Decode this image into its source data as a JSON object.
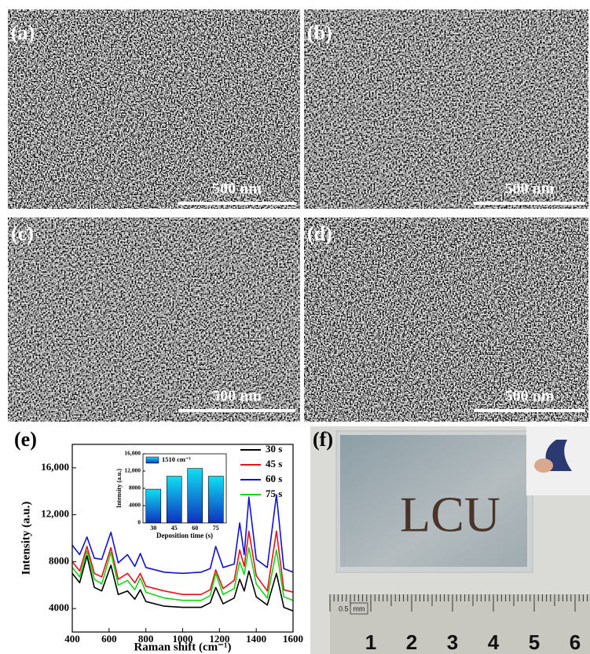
{
  "panels": [
    {
      "label": "(a)",
      "scale_bar": "500 nm"
    },
    {
      "label": "(b)",
      "scale_bar": "500 nm"
    },
    {
      "label": "(c)",
      "scale_bar": "500 nm"
    },
    {
      "label": "(d)",
      "scale_bar": "500 nm"
    },
    {
      "label": "(e)"
    },
    {
      "label": "(f)",
      "sample_text": "LCU",
      "ruler_unit": "0.5",
      "ruler_unit_box": "mm",
      "ruler_labels": [
        "1",
        "2",
        "3",
        "4",
        "5",
        "6"
      ]
    }
  ],
  "chart_data": [
    {
      "type": "line",
      "x_label": "Raman shift (cm⁻¹)",
      "y_label": "Intensity (a.u.)",
      "x": [
        400,
        440,
        480,
        520,
        560,
        610,
        650,
        700,
        740,
        770,
        800,
        900,
        1000,
        1100,
        1150,
        1180,
        1220,
        1280,
        1310,
        1335,
        1360,
        1400,
        1460,
        1510,
        1550,
        1600
      ],
      "xlim": [
        400,
        1600
      ],
      "xticks": [
        400,
        600,
        800,
        1000,
        1200,
        1400,
        1600
      ],
      "ylim": [
        2000,
        18000
      ],
      "yticks": [
        4000,
        8000,
        {
          "value": 12000,
          "label": "12,000"
        },
        {
          "value": 16000,
          "label": "16,000"
        }
      ],
      "series": [
        {
          "name": "30 s",
          "color": "#000000",
          "values": [
            7000,
            6200,
            8500,
            5800,
            5500,
            7700,
            5200,
            5500,
            4800,
            5600,
            4600,
            4200,
            4100,
            4100,
            4500,
            5800,
            4400,
            4900,
            6500,
            5500,
            7200,
            5000,
            4300,
            7000,
            4100,
            3800
          ]
        },
        {
          "name": "45 s",
          "color": "#e8101a",
          "values": [
            8000,
            7200,
            9300,
            7000,
            6700,
            9200,
            6500,
            7000,
            6200,
            7000,
            5900,
            5500,
            5200,
            5200,
            5600,
            7300,
            5700,
            6400,
            9000,
            7600,
            10600,
            6800,
            5500,
            10600,
            5600,
            5400
          ]
        },
        {
          "name": "60 s",
          "color": "#1010d8",
          "values": [
            9400,
            8600,
            10100,
            8300,
            8200,
            10500,
            7900,
            8600,
            7600,
            8700,
            7500,
            7100,
            7000,
            7100,
            7400,
            9300,
            7500,
            7800,
            11300,
            8600,
            13500,
            8200,
            7500,
            13700,
            7400,
            7100
          ]
        },
        {
          "name": "75 s",
          "color": "#10d810",
          "values": [
            7500,
            6700,
            8900,
            6500,
            6100,
            8800,
            6000,
            6400,
            5600,
            6600,
            5400,
            4900,
            4700,
            4700,
            5100,
            7000,
            5200,
            5700,
            8000,
            6900,
            9200,
            6100,
            4900,
            9000,
            5000,
            4700
          ]
        }
      ]
    },
    {
      "type": "bar",
      "x_label": "Deposition time (s)",
      "y_label": "Intensity (a.u.)",
      "categories": [
        "30",
        "45",
        "60",
        "75"
      ],
      "ylim": [
        0,
        16000
      ],
      "yticks": [
        0,
        4000,
        8000,
        {
          "value": 12000,
          "label": "12,000"
        },
        {
          "value": 16000,
          "label": "16,000"
        }
      ],
      "series": [
        {
          "name": "1510 cm⁻¹",
          "values": [
            7800,
            10800,
            12600,
            10800
          ]
        }
      ]
    }
  ]
}
